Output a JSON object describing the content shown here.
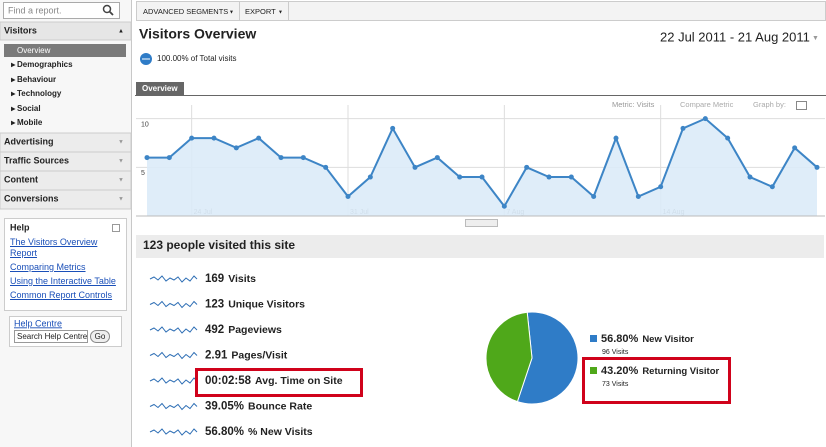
{
  "search": {
    "placeholder": "Find a report."
  },
  "nav": {
    "sections": [
      {
        "label": "Visitors",
        "items": [
          "Overview",
          "Demographics",
          "Behaviour",
          "Technology",
          "Social",
          "Mobile"
        ]
      },
      {
        "label": "Advertising"
      },
      {
        "label": "Traffic Sources"
      },
      {
        "label": "Content"
      },
      {
        "label": "Conversions"
      }
    ]
  },
  "help": {
    "title": "Help",
    "links": [
      "The Visitors Overview Report",
      "Comparing Metrics",
      "Using the Interactive Table",
      "Common Report Controls"
    ],
    "centre": "Help Centre",
    "search_placeholder": "Search Help Centre",
    "button": "Go"
  },
  "toolbar": {
    "buttons": [
      "ADVANCED SEGMENTS",
      "EXPORT"
    ]
  },
  "header": {
    "title": "Visitors Overview",
    "date_range": "22 Jul 2011 - 21 Aug 2011",
    "segment": "100.00% of Total visits"
  },
  "tabs": [
    "Overview"
  ],
  "graph_controls": {
    "metric": "Metric: Visits",
    "compare": "Compare Metric",
    "graph_by": "Graph by:"
  },
  "summary": {
    "title": "123 people visited this site",
    "metrics": [
      {
        "value": "169",
        "label": "Visits"
      },
      {
        "value": "123",
        "label": "Unique Visitors"
      },
      {
        "value": "492",
        "label": "Pageviews"
      },
      {
        "value": "2.91",
        "label": "Pages/Visit"
      },
      {
        "value": "00:02:58",
        "label": "Avg. Time on Site"
      },
      {
        "value": "39.05%",
        "label": "Bounce Rate"
      },
      {
        "value": "56.80%",
        "label": "% New Visits"
      }
    ]
  },
  "chart_data": [
    {
      "type": "line",
      "categories": [
        null,
        null,
        "24 Jul",
        null,
        null,
        null,
        null,
        null,
        null,
        "31 Jul",
        null,
        null,
        null,
        null,
        null,
        null,
        "7 Aug",
        null,
        null,
        null,
        null,
        null,
        null,
        "14 Aug",
        null,
        null,
        null,
        null,
        null,
        null,
        null
      ],
      "series": [
        {
          "name": "Visits",
          "color": "#3d85c6",
          "values": [
            6,
            6,
            8,
            8,
            7,
            8,
            6,
            6,
            5,
            2,
            4,
            9,
            5,
            6,
            4,
            4,
            1,
            5,
            4,
            4,
            2,
            8,
            2,
            3,
            9,
            10,
            8,
            4,
            3,
            7,
            5
          ]
        }
      ],
      "ylim": [
        0,
        11.4
      ],
      "yticks": [
        5,
        10
      ],
      "grid": true
    },
    {
      "type": "pie",
      "categories": [
        "New Visitor",
        "Returning Visitor"
      ],
      "values": [
        56.8,
        43.2
      ],
      "value_labels": [
        "56.80%",
        "43.20%"
      ],
      "visits_labels": [
        "96 Visits",
        "73 Visits"
      ],
      "colors": [
        "#2f7cc7",
        "#4fa81a"
      ]
    }
  ]
}
